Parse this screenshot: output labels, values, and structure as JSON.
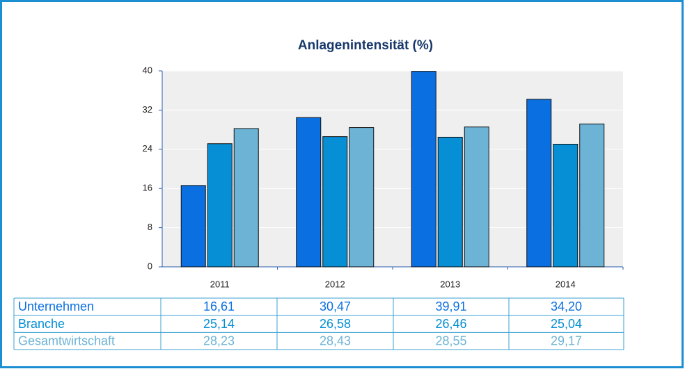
{
  "chart_data": {
    "type": "bar",
    "title": "Anlagenintensität (%)",
    "categories": [
      "2011",
      "2012",
      "2013",
      "2014"
    ],
    "series": [
      {
        "name": "Unternehmen",
        "color": "#0a6fe0",
        "values": [
          16.61,
          30.47,
          39.91,
          34.2
        ],
        "value_labels": [
          "16,61",
          "30,47",
          "39,91",
          "34,20"
        ]
      },
      {
        "name": "Branche",
        "color": "#068fd4",
        "values": [
          25.14,
          26.58,
          26.46,
          25.04
        ],
        "value_labels": [
          "25,14",
          "26,58",
          "26,46",
          "25,04"
        ]
      },
      {
        "name": "Gesamtwirtschaft",
        "color": "#6cb3d6",
        "values": [
          28.23,
          28.43,
          28.55,
          29.17
        ],
        "value_labels": [
          "28,23",
          "28,43",
          "28,55",
          "29,17"
        ]
      }
    ],
    "ylim": [
      0,
      40
    ],
    "yticks": [
      0,
      8,
      16,
      24,
      32,
      40
    ],
    "grid": true
  }
}
